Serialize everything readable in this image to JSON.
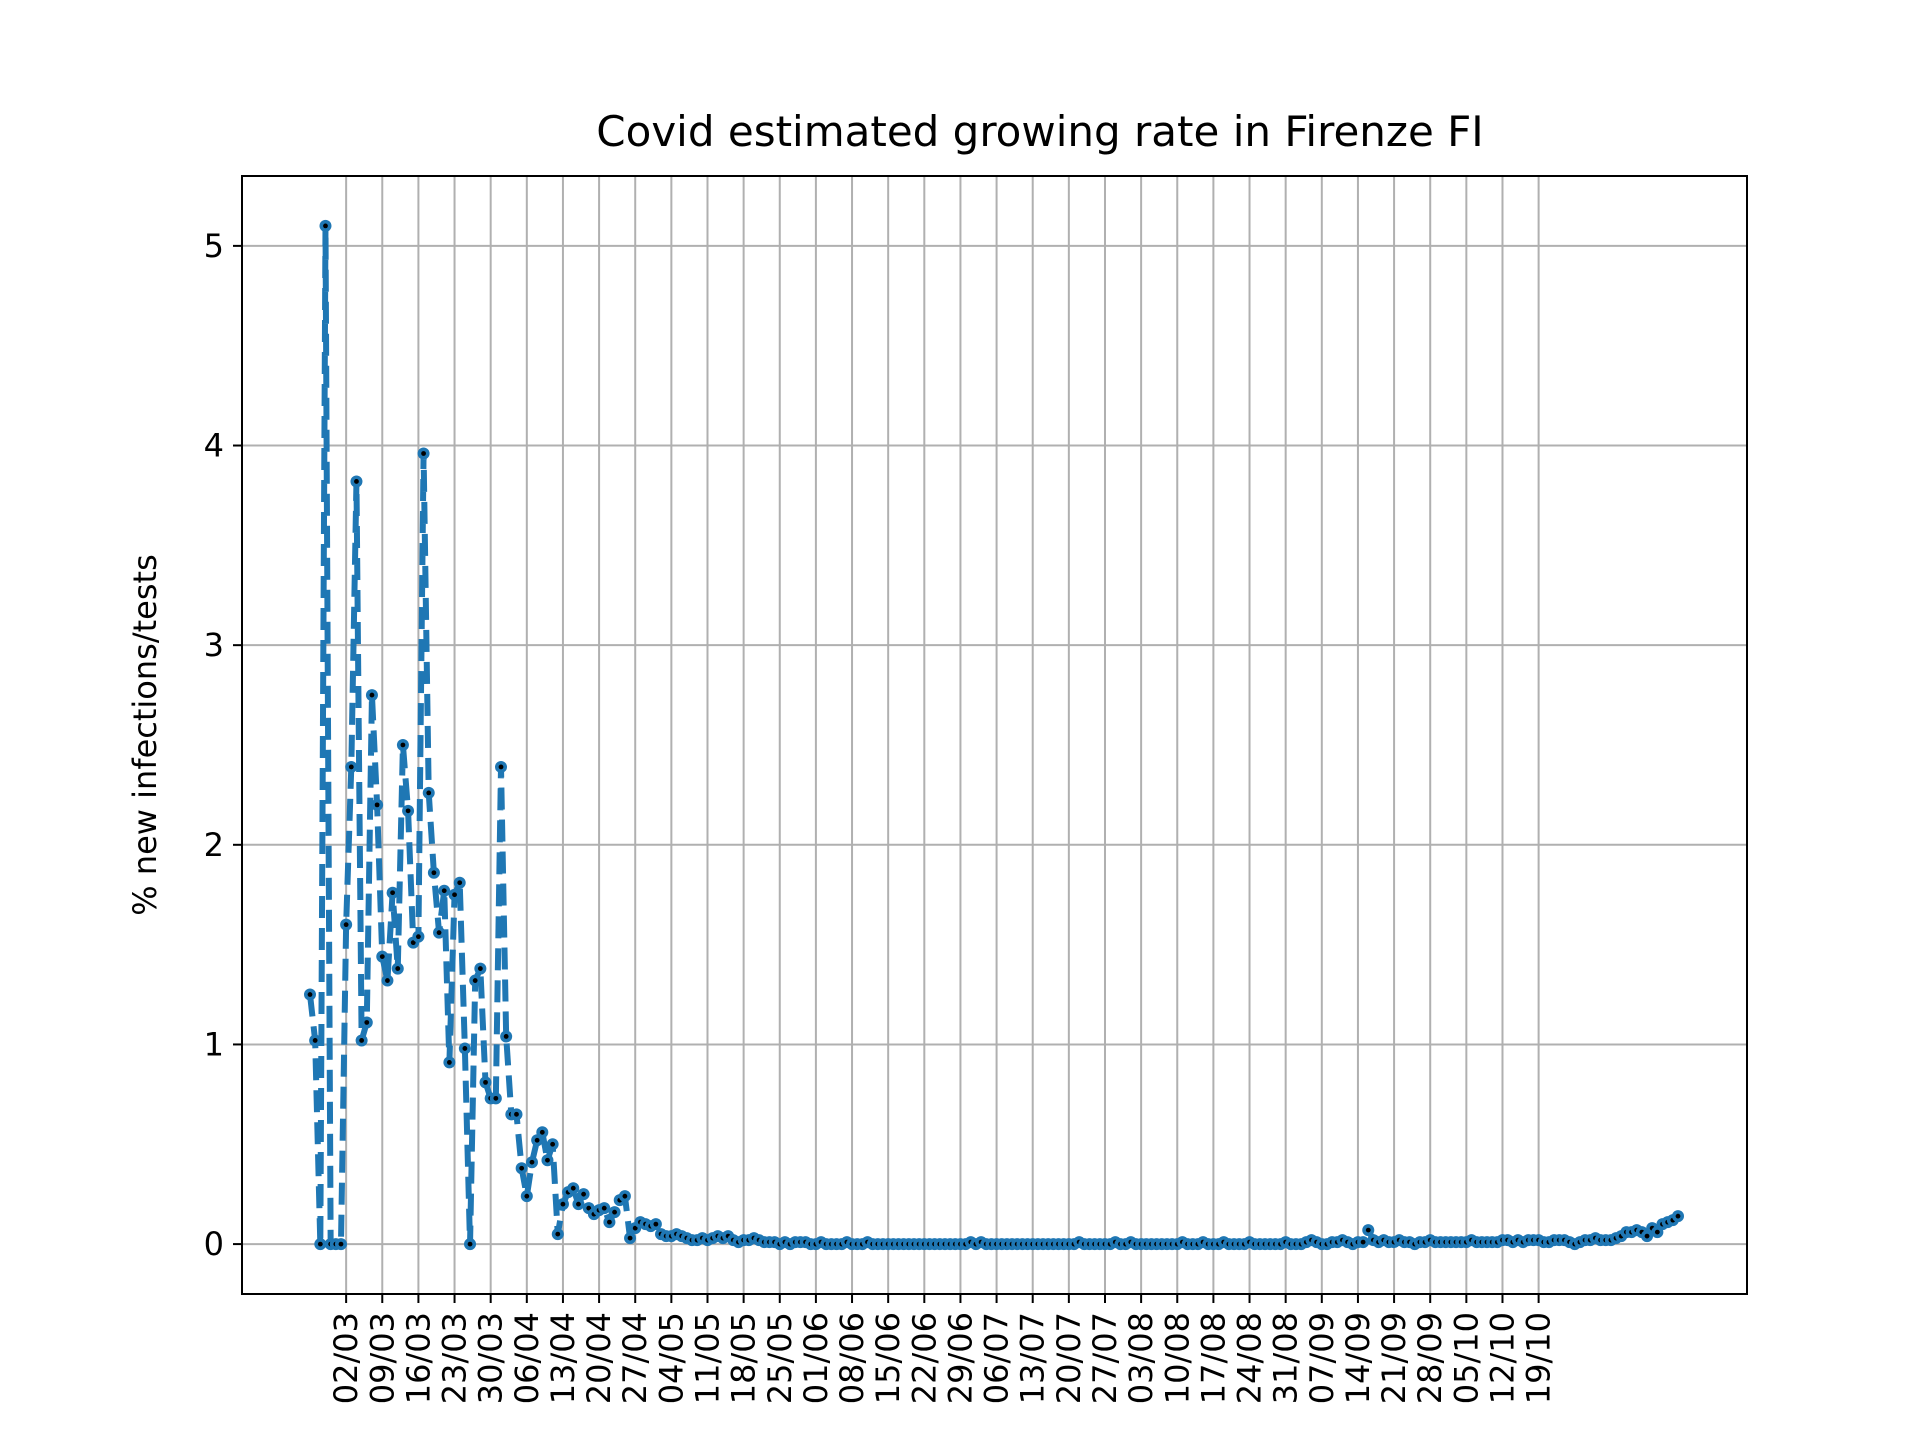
{
  "chart_data": {
    "type": "line",
    "title": "Covid estimated growing rate in Firenze FI",
    "xlabel": "",
    "ylabel": "% new infections/tests",
    "ylim": [
      -0.25,
      5.35
    ],
    "y_ticks": [
      0,
      1,
      2,
      3,
      4,
      5
    ],
    "x_start": "2020-02-24",
    "x_ticks": [
      "02/03",
      "09/03",
      "16/03",
      "23/03",
      "30/03",
      "06/04",
      "13/04",
      "20/04",
      "27/04",
      "04/05",
      "11/05",
      "18/05",
      "25/05",
      "01/06",
      "08/06",
      "15/06",
      "22/06",
      "29/06",
      "06/07",
      "13/07",
      "20/07",
      "27/07",
      "03/08",
      "10/08",
      "17/08",
      "24/08",
      "31/08",
      "07/09",
      "14/09",
      "21/09",
      "28/09",
      "05/10",
      "12/10",
      "19/10"
    ],
    "grid": true,
    "line_color": "#1f77b4",
    "marker_color": "#000000",
    "line_style": "dashed",
    "series": [
      {
        "name": "",
        "values": [
          1.25,
          1.02,
          0.0,
          5.1,
          0.0,
          0.0,
          0.0,
          1.6,
          2.39,
          3.82,
          1.02,
          1.11,
          2.75,
          2.2,
          1.44,
          1.32,
          1.76,
          1.38,
          2.5,
          2.17,
          1.51,
          1.54,
          3.96,
          2.26,
          1.86,
          1.56,
          1.77,
          0.91,
          1.75,
          1.81,
          0.98,
          0.0,
          1.32,
          1.38,
          0.81,
          0.73,
          0.73,
          2.39,
          1.04,
          0.65,
          0.65,
          0.38,
          0.24,
          0.41,
          0.52,
          0.56,
          0.42,
          0.5,
          0.05,
          0.2,
          0.26,
          0.28,
          0.2,
          0.25,
          0.18,
          0.15,
          0.17,
          0.18,
          0.11,
          0.16,
          0.22,
          0.24,
          0.03,
          0.08,
          0.11,
          0.1,
          0.09,
          0.1,
          0.05,
          0.04,
          0.04,
          0.05,
          0.04,
          0.03,
          0.02,
          0.02,
          0.03,
          0.02,
          0.03,
          0.04,
          0.03,
          0.04,
          0.02,
          0.01,
          0.02,
          0.02,
          0.03,
          0.02,
          0.01,
          0.01,
          0.01,
          0.0,
          0.01,
          0.0,
          0.01,
          0.01,
          0.01,
          0.0,
          0.0,
          0.01,
          0.0,
          0.0,
          0.0,
          0.0,
          0.01,
          0.0,
          0.0,
          0.0,
          0.01,
          0.0,
          0.0,
          0.0,
          0.0,
          0.0,
          0.0,
          0.0,
          0.0,
          0.0,
          0.0,
          0.0,
          0.0,
          0.0,
          0.0,
          0.0,
          0.0,
          0.0,
          0.0,
          0.0,
          0.01,
          0.0,
          0.01,
          0.0,
          0.0,
          0.0,
          0.0,
          0.0,
          0.0,
          0.0,
          0.0,
          0.0,
          0.0,
          0.0,
          0.0,
          0.0,
          0.0,
          0.0,
          0.0,
          0.0,
          0.0,
          0.01,
          0.0,
          0.0,
          0.0,
          0.0,
          0.0,
          0.0,
          0.01,
          0.0,
          0.0,
          0.01,
          0.0,
          0.0,
          0.0,
          0.0,
          0.0,
          0.0,
          0.0,
          0.0,
          0.0,
          0.01,
          0.0,
          0.0,
          0.0,
          0.01,
          0.0,
          0.0,
          0.0,
          0.01,
          0.0,
          0.0,
          0.0,
          0.0,
          0.01,
          0.0,
          0.0,
          0.0,
          0.0,
          0.0,
          0.0,
          0.01,
          0.0,
          0.0,
          0.0,
          0.01,
          0.02,
          0.01,
          0.0,
          0.0,
          0.01,
          0.01,
          0.02,
          0.01,
          0.0,
          0.01,
          0.01,
          0.07,
          0.02,
          0.01,
          0.02,
          0.01,
          0.01,
          0.02,
          0.01,
          0.01,
          0.0,
          0.01,
          0.01,
          0.02,
          0.01,
          0.01,
          0.01,
          0.01,
          0.01,
          0.01,
          0.01,
          0.02,
          0.01,
          0.01,
          0.01,
          0.01,
          0.01,
          0.02,
          0.02,
          0.01,
          0.02,
          0.01,
          0.02,
          0.02,
          0.02,
          0.01,
          0.01,
          0.02,
          0.02,
          0.02,
          0.01,
          0.0,
          0.01,
          0.02,
          0.02,
          0.03,
          0.02,
          0.02,
          0.02,
          0.03,
          0.04,
          0.06,
          0.06,
          0.07,
          0.06,
          0.04,
          0.08,
          0.06,
          0.1,
          0.11,
          0.12,
          0.14
        ]
      }
    ]
  }
}
